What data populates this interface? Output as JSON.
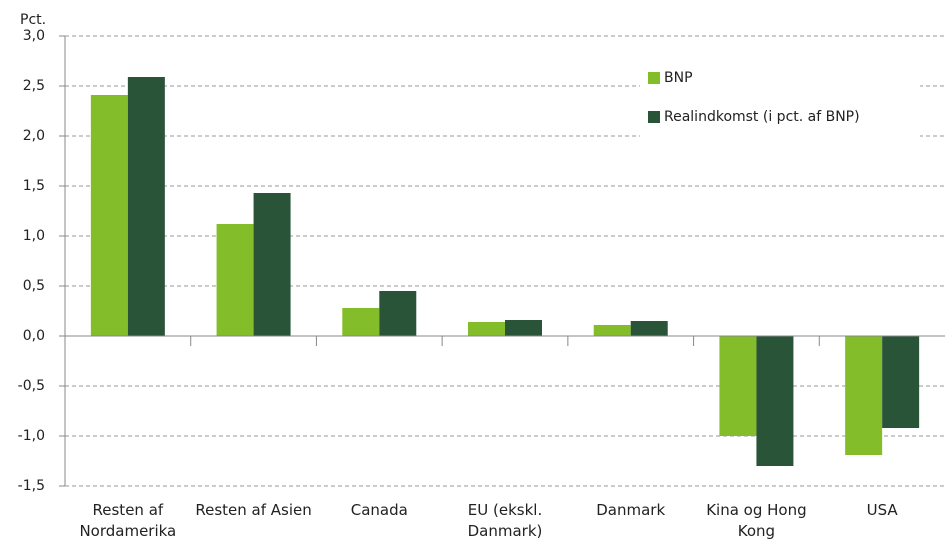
{
  "chart_data": {
    "type": "bar",
    "y_axis_label": "Pct.",
    "categories": [
      "Resten af Nordamerika",
      "Resten af Asien",
      "Canada",
      "EU (ekskl. Danmark)",
      "Danmark",
      "Kina og Hong Kong",
      "USA"
    ],
    "series": [
      {
        "name": "BNP",
        "color": "#84bd2a",
        "values": [
          2.41,
          1.12,
          0.28,
          0.14,
          0.11,
          -1.0,
          -1.19
        ]
      },
      {
        "name": "Realindkomst (i pct. af BNP)",
        "color": "#2a5438",
        "values": [
          2.59,
          1.43,
          0.45,
          0.16,
          0.15,
          -1.3,
          -0.92
        ]
      }
    ],
    "ylim": [
      -1.5,
      3.0
    ],
    "yticks": [
      {
        "value": -1.5,
        "label": "-1,5"
      },
      {
        "value": -1.0,
        "label": "-1,0"
      },
      {
        "value": -0.5,
        "label": "-0,5"
      },
      {
        "value": 0,
        "label": "0,0"
      },
      {
        "value": 0.5,
        "label": "0,5"
      },
      {
        "value": 1.0,
        "label": "1,0"
      },
      {
        "value": 1.5,
        "label": "1,5"
      },
      {
        "value": 2.0,
        "label": "2,0"
      },
      {
        "value": 2.5,
        "label": "2,5"
      },
      {
        "value": 3.0,
        "label": "3,0"
      }
    ],
    "grid": true,
    "legend": "top-right"
  }
}
